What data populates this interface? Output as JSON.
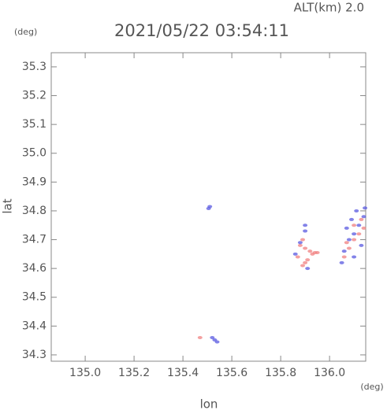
{
  "chart_data": {
    "type": "scatter",
    "title": "2021/05/22 03:54:11",
    "subtitle": "ALT(km) 2.0",
    "x_label": "lon",
    "y_label": "lat",
    "x_unit": "(deg)",
    "y_unit": "(deg)",
    "xlim": [
      134.861,
      136.148
    ],
    "ylim": [
      34.278,
      35.349
    ],
    "xticks": [
      {
        "value": 135.0,
        "label": "135.0"
      },
      135.2,
      135.4,
      135.6,
      135.8,
      {
        "value": 136.0,
        "label": "136.0"
      }
    ],
    "yticks": [
      34.3,
      34.4,
      34.5,
      34.6,
      34.7,
      34.8,
      34.9,
      {
        "value": 35.0,
        "label": "35.0"
      },
      35.1,
      35.2,
      35.3
    ],
    "series": [
      {
        "color": "#f08080",
        "x": [
          135.47,
          135.88,
          135.9,
          135.92,
          135.94,
          135.95,
          135.9,
          135.89,
          135.91,
          135.87,
          135.89,
          135.93,
          136.06,
          136.08,
          136.1,
          136.12,
          136.14,
          136.13,
          136.1,
          136.07
        ],
        "values": [
          34.36,
          34.68,
          34.67,
          34.66,
          34.655,
          34.655,
          34.62,
          34.61,
          34.63,
          34.64,
          34.7,
          34.65,
          34.64,
          34.67,
          34.7,
          34.72,
          34.74,
          34.77,
          34.75,
          34.69
        ]
      },
      {
        "color": "#5a5ae0",
        "x": [
          135.51,
          135.505,
          135.52,
          135.53,
          135.54,
          135.9,
          135.9,
          135.88,
          135.86,
          135.91,
          136.06,
          136.08,
          136.1,
          136.12,
          136.14,
          136.145,
          136.07,
          136.09,
          136.11,
          136.13,
          136.05,
          136.1
        ],
        "values": [
          34.815,
          34.808,
          34.36,
          34.352,
          34.345,
          34.75,
          34.73,
          34.69,
          34.65,
          34.6,
          34.66,
          34.7,
          34.72,
          34.75,
          34.78,
          34.81,
          34.74,
          34.77,
          34.8,
          34.68,
          34.62,
          34.64
        ]
      }
    ]
  }
}
